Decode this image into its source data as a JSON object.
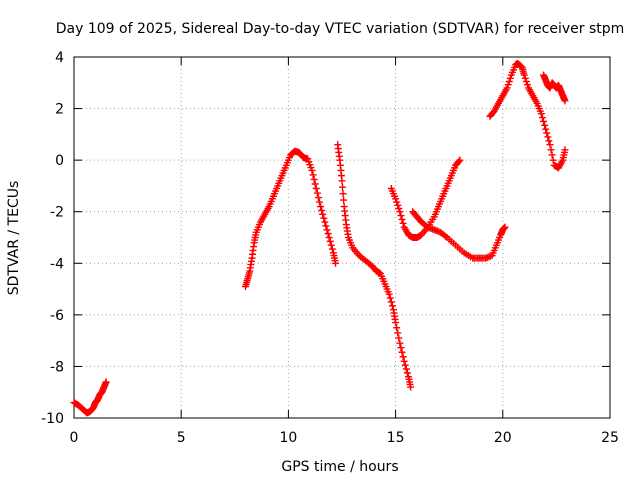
{
  "chart_data": {
    "type": "scatter",
    "title": "Day 109 of 2025, Sidereal Day-to-day VTEC variation (SDTVAR) for receiver stpm",
    "xlabel": "GPS time / hours",
    "ylabel": "SDTVAR / TECUs",
    "xlim": [
      0,
      25
    ],
    "ylim": [
      -10,
      4
    ],
    "xticks": [
      "0",
      "5",
      "10",
      "15",
      "20",
      "25"
    ],
    "yticks": [
      "-10",
      "-8",
      "-6",
      "-4",
      "-2",
      "0",
      "2",
      "4"
    ],
    "grid": true,
    "marker": "+",
    "color": "#ff0000",
    "series": [
      {
        "x": [
          0.0,
          0.2,
          0.4,
          0.6,
          0.75,
          0.9,
          1.0,
          1.1,
          1.2,
          1.3,
          1.4,
          1.5
        ],
        "y": [
          -9.4,
          -9.5,
          -9.65,
          -9.8,
          -9.75,
          -9.6,
          -9.4,
          -9.3,
          -9.1,
          -9.0,
          -8.8,
          -8.6
        ]
      },
      {
        "x": [
          8.0,
          8.1,
          8.2,
          8.3,
          8.4,
          8.5,
          8.7,
          8.9,
          9.1,
          9.3,
          9.5,
          9.7,
          9.9,
          10.1,
          10.3,
          10.5,
          10.7,
          10.9,
          11.1,
          11.3,
          11.5,
          11.7,
          11.9,
          12.1,
          12.2
        ],
        "y": [
          -4.9,
          -4.6,
          -4.3,
          -3.8,
          -3.2,
          -2.8,
          -2.4,
          -2.1,
          -1.8,
          -1.4,
          -1.0,
          -0.6,
          -0.2,
          0.2,
          0.35,
          0.3,
          0.1,
          0.05,
          -0.4,
          -1.1,
          -1.8,
          -2.4,
          -3.0,
          -3.6,
          -4.0
        ]
      },
      {
        "x": [
          12.3,
          12.4,
          12.5,
          12.6,
          12.7,
          12.8,
          13.0,
          13.3,
          13.6,
          13.9,
          14.1,
          14.3,
          14.5,
          14.7,
          14.9,
          15.0,
          15.2,
          15.4,
          15.6,
          15.7
        ],
        "y": [
          0.6,
          0.0,
          -0.8,
          -1.8,
          -2.5,
          -3.0,
          -3.4,
          -3.7,
          -3.9,
          -4.1,
          -4.3,
          -4.4,
          -4.8,
          -5.2,
          -5.8,
          -6.3,
          -7.1,
          -7.8,
          -8.4,
          -8.8
        ]
      },
      {
        "x": [
          14.8,
          15.0,
          15.2,
          15.4,
          15.6,
          15.8,
          16.0,
          16.2,
          16.5,
          16.8,
          17.0,
          17.2,
          17.4,
          17.6,
          17.8,
          18.0
        ],
        "y": [
          -1.1,
          -1.5,
          -2.0,
          -2.6,
          -2.9,
          -3.0,
          -3.0,
          -2.9,
          -2.6,
          -2.2,
          -1.8,
          -1.4,
          -1.0,
          -0.6,
          -0.2,
          0.0
        ]
      },
      {
        "x": [
          15.8,
          16.0,
          16.2,
          16.5,
          16.8,
          17.1,
          17.4,
          17.8,
          18.2,
          18.6,
          18.9,
          19.2,
          19.5,
          19.7,
          19.9,
          20.0,
          20.1
        ],
        "y": [
          -2.0,
          -2.2,
          -2.4,
          -2.6,
          -2.7,
          -2.8,
          -3.0,
          -3.3,
          -3.6,
          -3.8,
          -3.8,
          -3.8,
          -3.7,
          -3.3,
          -2.9,
          -2.7,
          -2.6
        ]
      },
      {
        "x": [
          19.4,
          19.6,
          19.8,
          20.0,
          20.2,
          20.4,
          20.6,
          20.7,
          20.9,
          21.0,
          21.2,
          21.4,
          21.6,
          21.8,
          22.0,
          22.2,
          22.4,
          22.6,
          22.8,
          22.9
        ],
        "y": [
          1.7,
          1.9,
          2.2,
          2.5,
          2.8,
          3.3,
          3.7,
          3.75,
          3.6,
          3.3,
          2.8,
          2.5,
          2.2,
          1.8,
          1.2,
          0.6,
          -0.2,
          -0.3,
          0.0,
          0.4
        ]
      },
      {
        "x": [
          21.9,
          22.0,
          22.1,
          22.2,
          22.3,
          22.4,
          22.5,
          22.6,
          22.7,
          22.8,
          22.9
        ],
        "y": [
          3.3,
          3.1,
          2.9,
          2.8,
          3.0,
          2.9,
          2.8,
          2.9,
          2.7,
          2.5,
          2.3
        ]
      }
    ]
  }
}
